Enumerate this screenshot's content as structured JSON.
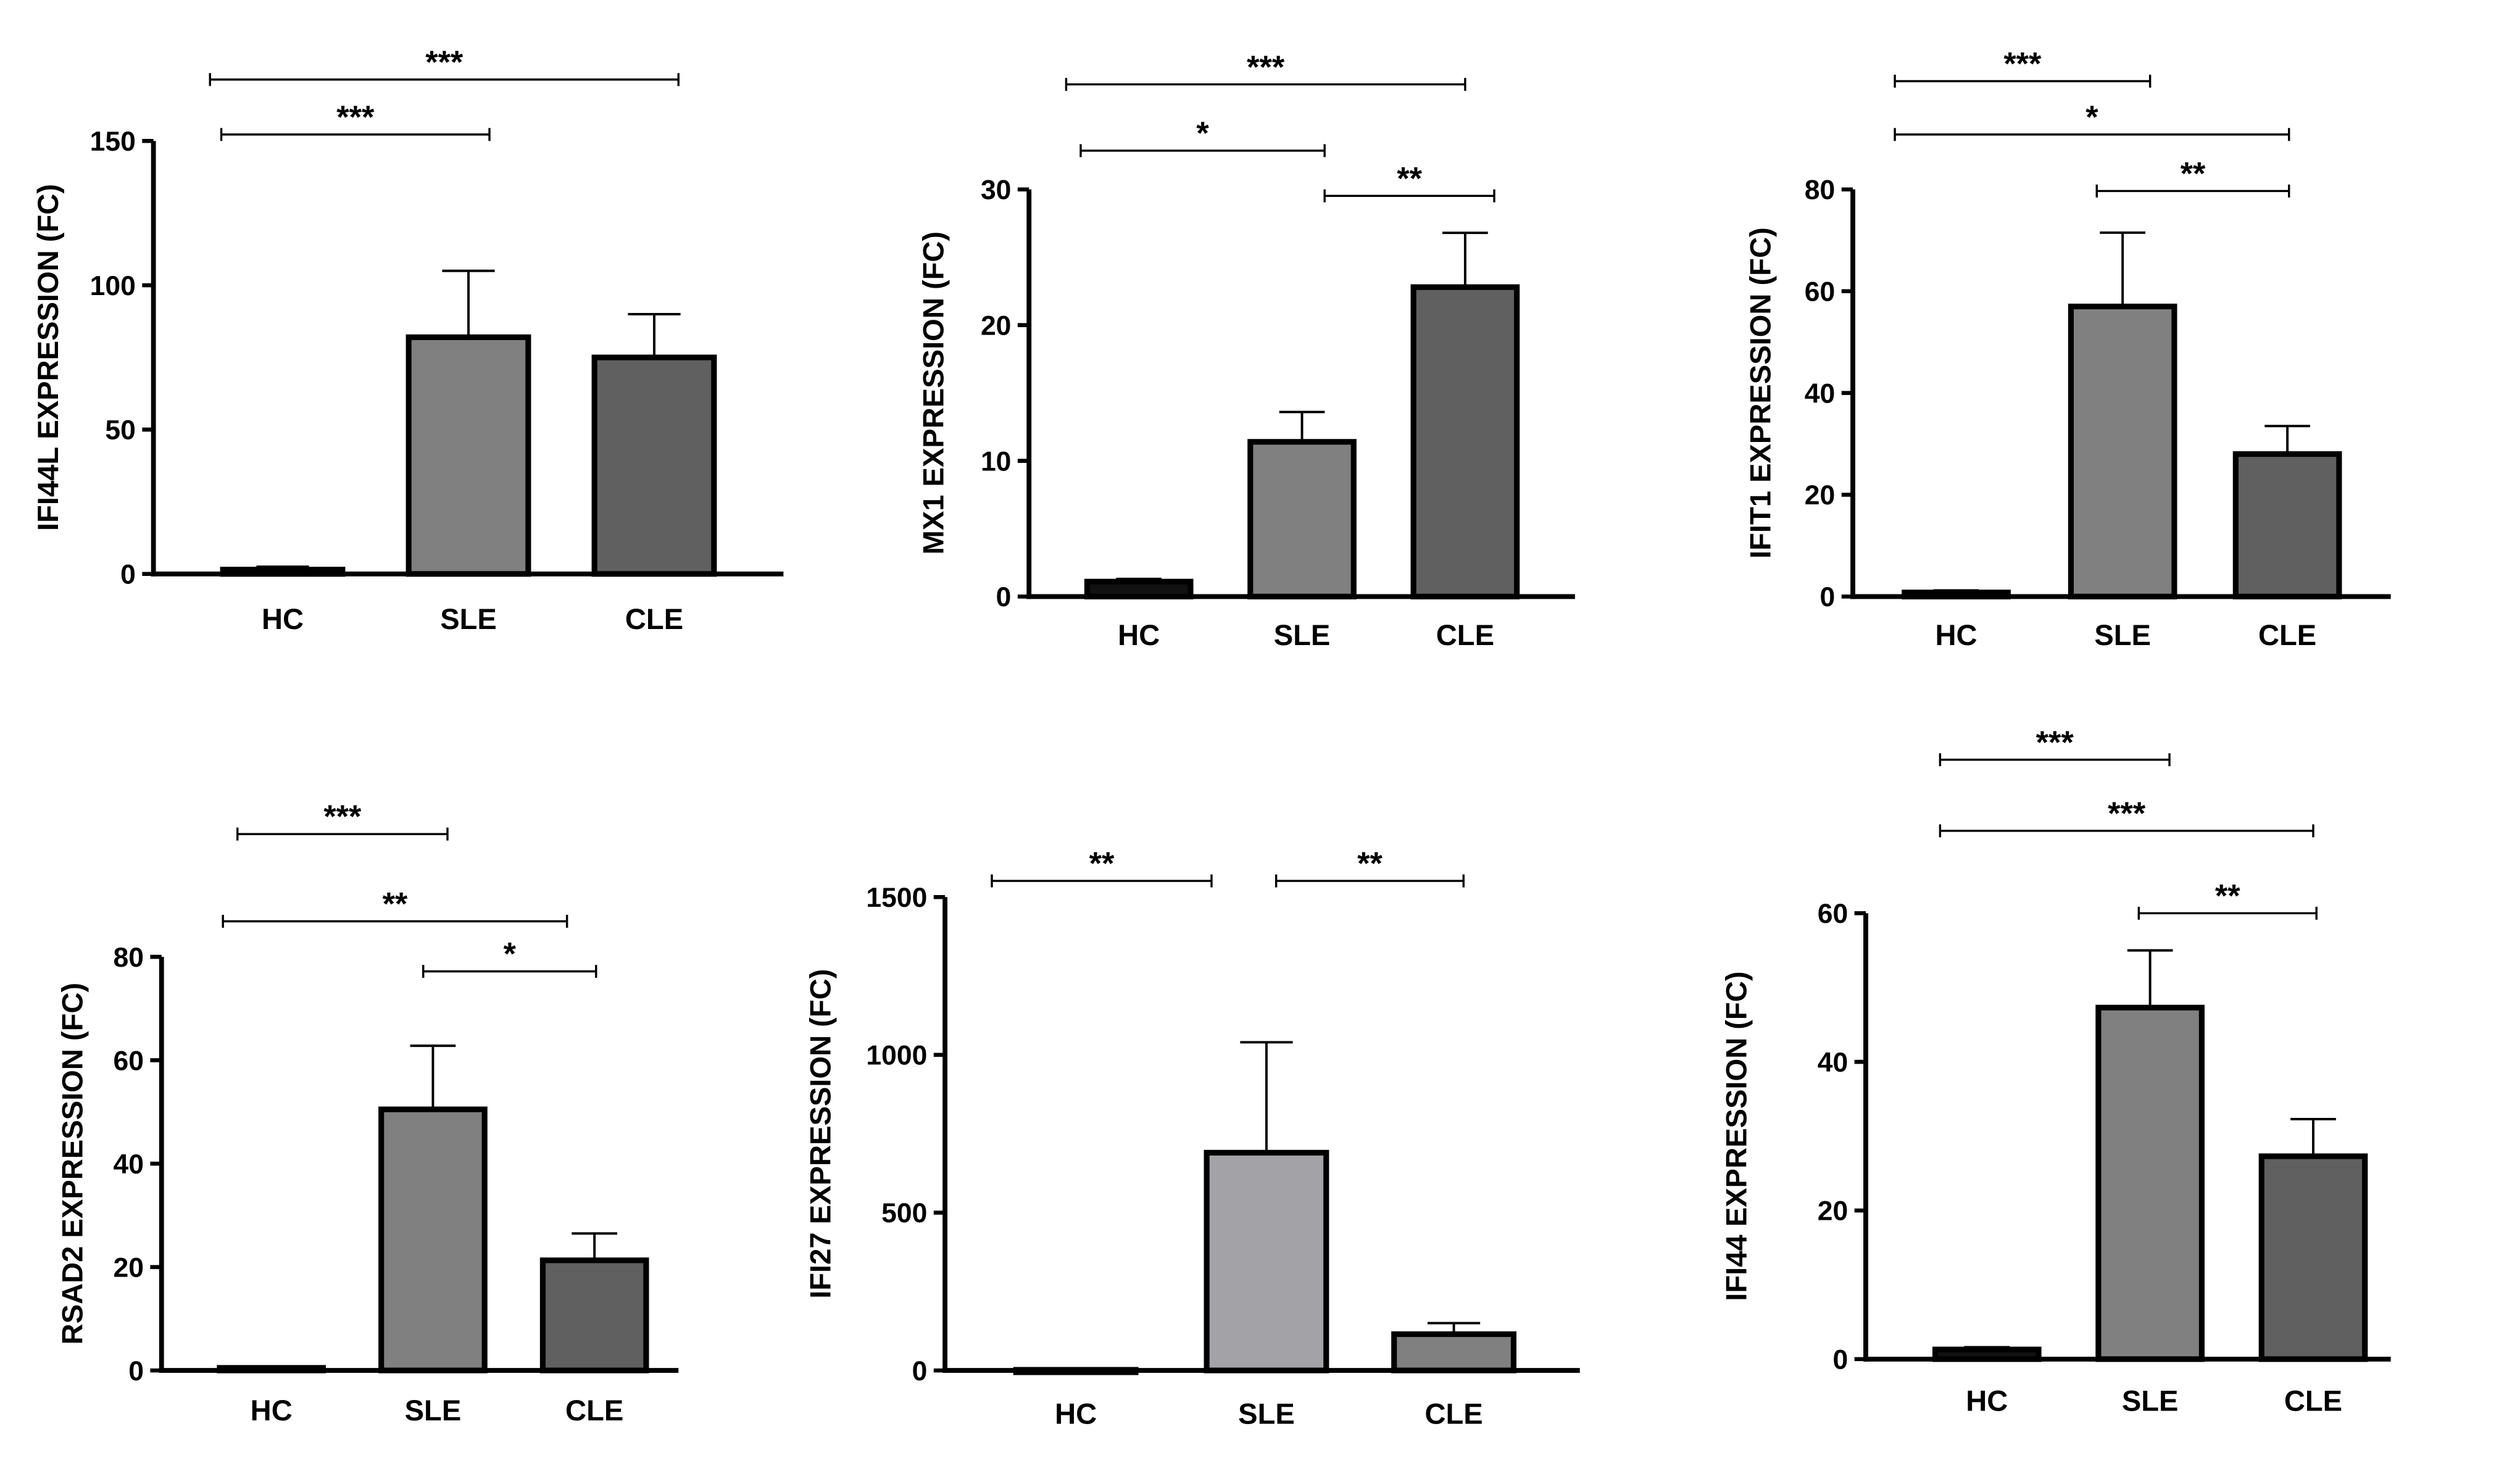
{
  "chart_data": [
    {
      "type": "bar",
      "title": "",
      "ylabel": "IFI44L EXPRESSION (FC)",
      "categories": [
        "HC",
        "SLE",
        "CLE"
      ],
      "values": [
        1.5,
        82,
        75
      ],
      "error_upper": [
        2.5,
        105,
        90
      ],
      "ylim": [
        0,
        150
      ],
      "yticks": [
        0,
        50,
        100,
        150
      ],
      "colors": [
        "#111111",
        "#808080",
        "#606060"
      ],
      "significance": [
        {
          "pair": [
            0,
            1
          ],
          "label": "***"
        },
        {
          "pair": [
            0,
            2
          ],
          "label": "***"
        }
      ]
    },
    {
      "type": "bar",
      "title": "",
      "ylabel": "MX1 EXPRESSION (FC)",
      "categories": [
        "HC",
        "SLE",
        "CLE"
      ],
      "values": [
        1.1,
        11.4,
        22.8
      ],
      "error_upper": [
        1.3,
        13.6,
        26.8
      ],
      "ylim": [
        0,
        30
      ],
      "yticks": [
        0,
        10,
        20,
        30
      ],
      "colors": [
        "#111111",
        "#808080",
        "#606060"
      ],
      "significance": [
        {
          "pair": [
            0,
            2
          ],
          "label": "***"
        },
        {
          "pair": [
            0,
            1
          ],
          "label": "*"
        },
        {
          "pair": [
            1,
            2
          ],
          "label": "**"
        }
      ]
    },
    {
      "type": "bar",
      "title": "",
      "ylabel": "IFIT1 EXPRESSION (FC)",
      "categories": [
        "HC",
        "SLE",
        "CLE"
      ],
      "values": [
        0.8,
        57,
        28
      ],
      "error_upper": [
        1.2,
        71.5,
        33.5
      ],
      "ylim": [
        0,
        80
      ],
      "yticks": [
        0,
        20,
        40,
        60,
        80
      ],
      "colors": [
        "#111111",
        "#808080",
        "#606060"
      ],
      "significance": [
        {
          "pair": [
            0,
            1
          ],
          "label": "***"
        },
        {
          "pair": [
            0,
            2
          ],
          "label": "*"
        },
        {
          "pair": [
            1,
            2
          ],
          "label": "**"
        }
      ]
    },
    {
      "type": "bar",
      "title": "",
      "ylabel": "RSAD2 EXPRESSION (FC)",
      "categories": [
        "HC",
        "SLE",
        "CLE"
      ],
      "values": [
        0.5,
        50.5,
        21.3
      ],
      "error_upper": [
        0.8,
        62.8,
        26.5
      ],
      "ylim": [
        0,
        80
      ],
      "yticks": [
        0,
        20,
        40,
        60,
        80
      ],
      "colors": [
        "#111111",
        "#808080",
        "#606060"
      ],
      "significance": [
        {
          "pair": [
            0,
            1
          ],
          "label": "***"
        },
        {
          "pair": [
            0,
            2
          ],
          "label": "**"
        },
        {
          "pair": [
            1,
            2
          ],
          "label": "*"
        }
      ]
    },
    {
      "type": "bar",
      "title": "",
      "ylabel": "IFI27 EXPRESSION (FC)",
      "categories": [
        "HC",
        "SLE",
        "CLE"
      ],
      "values": [
        2,
        690,
        115
      ],
      "error_upper": [
        3,
        1040,
        150
      ],
      "ylim": [
        0,
        1500
      ],
      "yticks": [
        0,
        500,
        1000,
        1500
      ],
      "colors": [
        "#111111",
        "#a2a2a7",
        "#808080"
      ],
      "significance": [
        {
          "pair": [
            0,
            1
          ],
          "label": "**"
        },
        {
          "pair": [
            1,
            2
          ],
          "label": "**"
        }
      ]
    },
    {
      "type": "bar",
      "title": "",
      "ylabel": "IFI44 EXPRESSION (FC)",
      "categories": [
        "HC",
        "SLE",
        "CLE"
      ],
      "values": [
        1.3,
        47.3,
        27.3
      ],
      "error_upper": [
        1.6,
        55,
        32.3
      ],
      "ylim": [
        0,
        60
      ],
      "yticks": [
        0,
        20,
        40,
        60
      ],
      "colors": [
        "#111111",
        "#808080",
        "#606060"
      ],
      "significance": [
        {
          "pair": [
            0,
            1
          ],
          "label": "***"
        },
        {
          "pair": [
            0,
            2
          ],
          "label": "***"
        },
        {
          "pair": [
            1,
            2
          ],
          "label": "**"
        }
      ]
    }
  ]
}
